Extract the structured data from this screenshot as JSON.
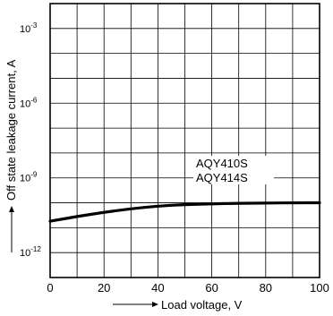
{
  "chart_data": {
    "type": "line",
    "title": "",
    "xlabel": "Load voltage, V",
    "ylabel": "Off state leakage current, A",
    "xlim": [
      0,
      100
    ],
    "ylim_log10": [
      -13,
      -2
    ],
    "y_scale": "log",
    "grid": true,
    "x_ticks": [
      "0",
      "20",
      "40",
      "60",
      "80",
      "100"
    ],
    "x_tick_values": [
      0,
      20,
      40,
      60,
      80,
      100
    ],
    "y_ticks": [
      {
        "base": "10",
        "exp": "-3",
        "log10": -3
      },
      {
        "base": "10",
        "exp": "-6",
        "log10": -6
      },
      {
        "base": "10",
        "exp": "-9",
        "log10": -9
      },
      {
        "base": "10",
        "exp": "-12",
        "log10": -12
      }
    ],
    "series": [
      {
        "x": [
          0,
          10,
          20,
          30,
          40,
          50,
          60,
          70,
          80,
          90,
          100
        ],
        "log10_y": [
          -10.74,
          -10.55,
          -10.38,
          -10.24,
          -10.13,
          -10.07,
          -10.04,
          -10.02,
          -10.01,
          -10.0,
          -10.0
        ]
      }
    ],
    "annotations": [
      "AQY410S",
      "AQY414S"
    ]
  }
}
